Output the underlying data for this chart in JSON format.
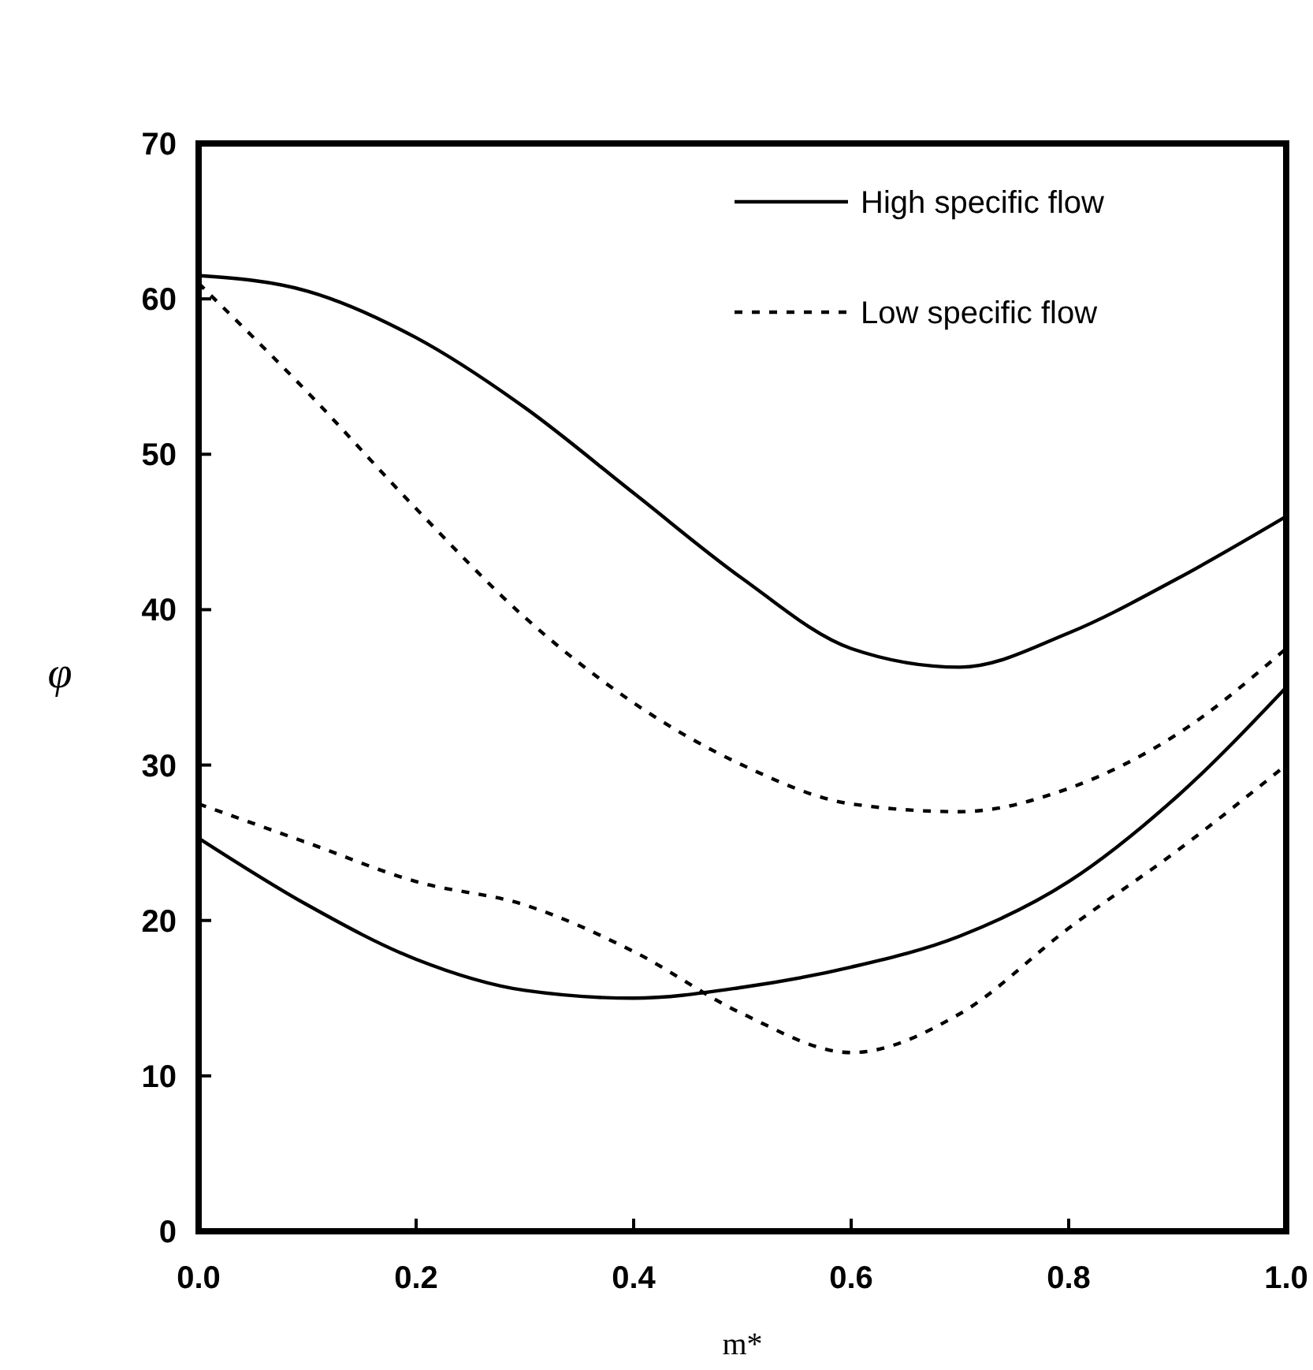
{
  "chart_data": {
    "type": "line",
    "xlabel": "m*",
    "ylabel": "φ",
    "x": [
      0,
      0.1,
      0.2,
      0.3,
      0.4,
      0.5,
      0.6,
      0.7,
      0.8,
      0.9,
      1.0
    ],
    "series": [
      {
        "name": "High specific flow",
        "color": "#000000",
        "line_style": "solid",
        "values": [
          61.5,
          60.5,
          57.5,
          53,
          47.5,
          42,
          37.5,
          36.3,
          38.5,
          42,
          46
        ]
      },
      {
        "name": "Low specific flow",
        "color": "#000000",
        "line_style": "dotted",
        "values": [
          61,
          54,
          46.5,
          39.5,
          34,
          30,
          27.5,
          27,
          28.5,
          32,
          37.5
        ]
      },
      {
        "color": "#000000",
        "line_style": "solid",
        "values": [
          25.3,
          21,
          17.5,
          15.5,
          15,
          15.7,
          17,
          19,
          22.5,
          28,
          35
        ]
      },
      {
        "color": "#000000",
        "line_style": "dotted",
        "values": [
          27.5,
          25,
          22.5,
          21,
          18,
          14,
          11.5,
          14,
          19.5,
          24.5,
          30
        ]
      }
    ],
    "xlim": [
      0,
      1
    ],
    "xticks": [
      {
        "value": 0,
        "label": "0.0"
      },
      {
        "value": 0.2,
        "label": "0.2"
      },
      {
        "value": 0.4,
        "label": "0.4"
      },
      {
        "value": 0.6,
        "label": "0.6"
      },
      {
        "value": 0.8,
        "label": "0.8"
      },
      {
        "value": 1,
        "label": "1.0"
      }
    ],
    "ylim": [
      0,
      70
    ],
    "yticks": [
      0,
      10,
      20,
      30,
      40,
      50,
      60,
      70
    ],
    "grid": false,
    "legend": "top right",
    "marker": "none"
  }
}
